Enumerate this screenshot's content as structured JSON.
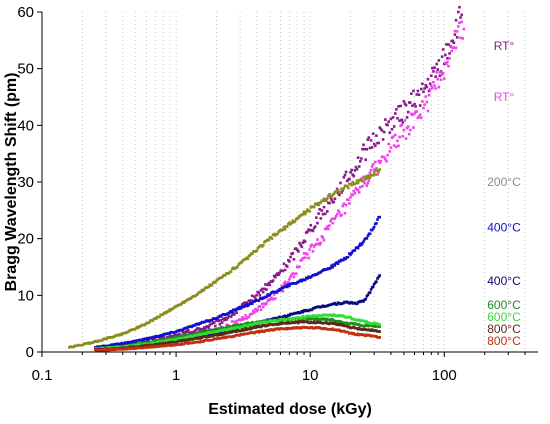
{
  "chart_data": {
    "type": "scatter",
    "xlabel": "Estimated dose (kGy)",
    "ylabel": "Bragg Wavelength Shift (pm)",
    "xscale": "log",
    "xlim": [
      0.1,
      500
    ],
    "ylim": [
      0,
      60
    ],
    "x_ticks": [
      0.1,
      1,
      10,
      100
    ],
    "x_tick_labels": [
      "0.1",
      "1",
      "10",
      "100"
    ],
    "y_ticks": [
      0,
      10,
      20,
      30,
      40,
      50,
      60
    ],
    "y_tick_labels": [
      "0",
      "10",
      "20",
      "30",
      "40",
      "50",
      "60"
    ],
    "grid": "vertical dotted at log minor ticks",
    "series": [
      {
        "name": "RT°",
        "color": "#8B1A8B",
        "x": [
          0.25,
          0.4,
          0.6,
          1.0,
          1.5,
          2,
          3,
          5,
          7,
          9,
          12,
          15,
          20,
          25,
          30,
          40,
          50,
          60,
          70,
          80,
          100,
          120,
          135
        ],
        "y": [
          0.6,
          1.0,
          1.6,
          2.8,
          4.0,
          5.0,
          7.5,
          12.0,
          16.0,
          20.0,
          24.5,
          27.5,
          31.5,
          35.0,
          37.5,
          40.5,
          42.5,
          44.5,
          46.0,
          48.0,
          52.0,
          56.5,
          59.5
        ]
      },
      {
        "name": "RT°",
        "color": "#EE44EE",
        "x": [
          0.25,
          0.4,
          0.6,
          1.0,
          1.5,
          2,
          3,
          5,
          7,
          9,
          12,
          15,
          20,
          25,
          30,
          40,
          50,
          60,
          70,
          80,
          100,
          120,
          140
        ],
        "y": [
          0.5,
          0.8,
          1.2,
          2.0,
          3.0,
          3.8,
          5.5,
          9.0,
          12.5,
          16.5,
          20.0,
          23.0,
          26.5,
          30.0,
          32.0,
          36.0,
          39.0,
          41.0,
          43.0,
          45.5,
          50.0,
          55.0,
          57.0
        ]
      },
      {
        "name": "200°C",
        "color": "#8C8C1E",
        "x": [
          0.16,
          0.25,
          0.4,
          0.6,
          1.0,
          1.5,
          2,
          3,
          4,
          5,
          7,
          9,
          12,
          15,
          20,
          25,
          30,
          33
        ],
        "y": [
          0.8,
          1.8,
          3.2,
          5.0,
          8.0,
          10.5,
          12.5,
          15.5,
          18.0,
          20.0,
          22.5,
          24.5,
          26.5,
          28.0,
          29.5,
          30.5,
          31.5,
          32.2
        ]
      },
      {
        "name": "400°C",
        "color": "#1010CC",
        "x": [
          0.25,
          0.4,
          0.6,
          1.0,
          1.5,
          2,
          3,
          4,
          5,
          7,
          9,
          12,
          15,
          18,
          20,
          25,
          28,
          30,
          33
        ],
        "y": [
          0.8,
          1.5,
          2.3,
          3.6,
          5.0,
          6.0,
          7.8,
          9.0,
          10.2,
          11.8,
          12.8,
          14.2,
          15.2,
          16.5,
          17.3,
          19.5,
          21.0,
          22.3,
          23.8
        ]
      },
      {
        "name": "400°C",
        "color": "#0A0A80",
        "x": [
          0.25,
          0.4,
          0.6,
          1.0,
          1.5,
          2,
          3,
          4,
          5,
          7,
          9,
          12,
          15,
          18,
          20,
          22,
          25,
          28,
          30,
          33
        ],
        "y": [
          0.5,
          0.9,
          1.3,
          2.0,
          2.6,
          3.2,
          4.2,
          5.0,
          5.7,
          6.5,
          7.2,
          8.0,
          8.5,
          8.7,
          8.7,
          8.6,
          9.0,
          10.5,
          12.0,
          13.5
        ]
      },
      {
        "name": "600°C",
        "color": "#1E8C1E",
        "x": [
          0.25,
          0.4,
          0.6,
          1.0,
          1.5,
          2,
          3,
          4,
          5,
          7,
          9,
          12,
          15,
          18,
          20,
          25,
          30,
          33
        ],
        "y": [
          0.6,
          1.0,
          1.6,
          2.6,
          3.4,
          4.0,
          4.8,
          5.3,
          5.6,
          5.8,
          5.9,
          5.8,
          5.6,
          5.2,
          5.0,
          4.7,
          4.6,
          4.5
        ]
      },
      {
        "name": "600°C",
        "color": "#33DD33",
        "x": [
          0.25,
          0.4,
          0.6,
          1.0,
          1.5,
          2,
          3,
          4,
          5,
          7,
          9,
          12,
          15,
          18,
          20,
          25,
          30,
          33
        ],
        "y": [
          0.5,
          0.9,
          1.4,
          2.2,
          3.0,
          3.6,
          4.4,
          5.0,
          5.4,
          5.8,
          6.2,
          6.4,
          6.5,
          6.3,
          6.0,
          5.4,
          5.0,
          4.8
        ]
      },
      {
        "name": "800°C",
        "color": "#5A2A1A",
        "x": [
          0.25,
          0.4,
          0.6,
          1.0,
          1.5,
          2,
          3,
          4,
          5,
          7,
          9,
          12,
          15,
          18,
          20,
          25,
          30,
          33
        ],
        "y": [
          0.4,
          0.7,
          1.1,
          1.8,
          2.5,
          3.0,
          3.8,
          4.4,
          4.8,
          5.2,
          5.3,
          5.2,
          5.0,
          4.6,
          4.3,
          4.0,
          3.8,
          3.6
        ]
      },
      {
        "name": "800°C",
        "color": "#C03010",
        "x": [
          0.25,
          0.4,
          0.6,
          1.0,
          1.5,
          2,
          3,
          4,
          5,
          7,
          9,
          12,
          15,
          18,
          20,
          25,
          30,
          33
        ],
        "y": [
          0.3,
          0.5,
          0.8,
          1.3,
          1.8,
          2.3,
          3.0,
          3.5,
          3.9,
          4.2,
          4.3,
          4.2,
          4.0,
          3.6,
          3.3,
          3.0,
          2.8,
          2.6
        ]
      }
    ],
    "annotations": [
      {
        "text": "RT°",
        "color": "#8B1A8B",
        "y": 54
      },
      {
        "text": "RT°",
        "color": "#EE44EE",
        "y": 45
      },
      {
        "text": "200°C",
        "color": "#8C8C8C",
        "y": 30
      },
      {
        "text": "400°C",
        "color": "#1010CC",
        "y": 22
      },
      {
        "text": "400°C",
        "color": "#0A0A80",
        "y": 12.5
      },
      {
        "text": "600°C",
        "color": "#1E8C1E",
        "y": 8.3
      },
      {
        "text": "600°C",
        "color": "#33DD33",
        "y": 6.2
      },
      {
        "text": "800°C",
        "color": "#5A2A1A",
        "y": 4.1
      },
      {
        "text": "800°C",
        "color": "#C03010",
        "y": 1.9
      }
    ]
  }
}
